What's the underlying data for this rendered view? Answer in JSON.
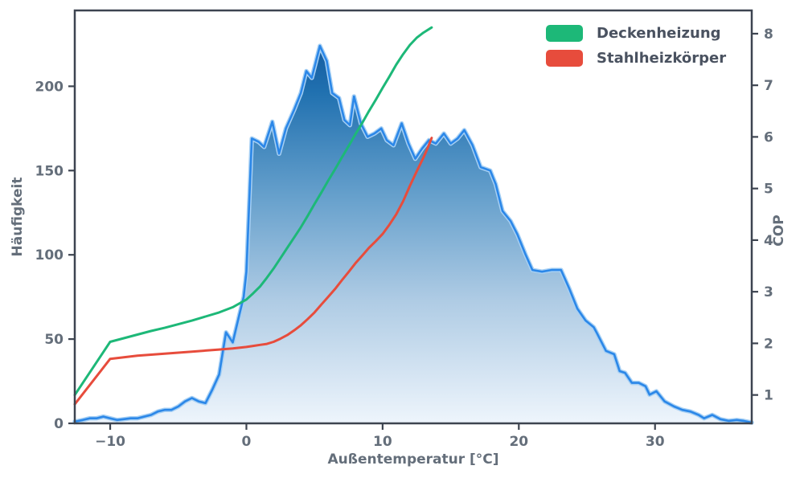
{
  "chart_data": {
    "type": "area",
    "title": "",
    "xlabel": "Außentemperatur [°C]",
    "ylabel_left": "Häufigkeit",
    "ylabel_right": "COP",
    "xlim": [
      -12.6,
      37.1
    ],
    "ylim_left": [
      0,
      245
    ],
    "ylim_right": [
      0.45,
      8.45
    ],
    "x_ticks": [
      -10,
      0,
      10,
      20,
      30
    ],
    "y_ticks_left": [
      0,
      50,
      100,
      150,
      200
    ],
    "y_ticks_right": [
      1,
      2,
      3,
      4,
      5,
      6,
      7,
      8
    ],
    "grid": false,
    "legend_position": "upper-right",
    "frame_color": "#3d4450",
    "text_color": "#646e7a",
    "histogram": {
      "name": "Häufigkeit",
      "axis": "left",
      "line_color": "#2b87e8",
      "halo_color": "#a7d0f4",
      "gradient": [
        "#0b4b94",
        "#2171b0",
        "#66a0cc",
        "#aecbe4",
        "#eef5fc"
      ],
      "points": [
        [
          -12.6,
          1
        ],
        [
          -12,
          2
        ],
        [
          -11.5,
          3
        ],
        [
          -11,
          3
        ],
        [
          -10.5,
          4
        ],
        [
          -10,
          3
        ],
        [
          -9.5,
          2
        ],
        [
          -9,
          2.5
        ],
        [
          -8.5,
          3
        ],
        [
          -8,
          3
        ],
        [
          -7.5,
          4
        ],
        [
          -7,
          5
        ],
        [
          -6.5,
          7
        ],
        [
          -6,
          8
        ],
        [
          -5.5,
          8
        ],
        [
          -5,
          10
        ],
        [
          -4.5,
          13
        ],
        [
          -4,
          15
        ],
        [
          -3.5,
          13
        ],
        [
          -3,
          12
        ],
        [
          -2.5,
          20
        ],
        [
          -2,
          29
        ],
        [
          -1.5,
          54
        ],
        [
          -1,
          48
        ],
        [
          -0.5,
          65
        ],
        [
          -0.2,
          75
        ],
        [
          0,
          90
        ],
        [
          0.2,
          130
        ],
        [
          0.4,
          169
        ],
        [
          0.9,
          167
        ],
        [
          1.3,
          164
        ],
        [
          1.9,
          179
        ],
        [
          2.4,
          160
        ],
        [
          2.9,
          175
        ],
        [
          3.5,
          186
        ],
        [
          4,
          196
        ],
        [
          4.4,
          209
        ],
        [
          4.8,
          205
        ],
        [
          5.4,
          224
        ],
        [
          5.9,
          215
        ],
        [
          6.3,
          196
        ],
        [
          6.8,
          193
        ],
        [
          7.2,
          180
        ],
        [
          7.6,
          177
        ],
        [
          7.9,
          194
        ],
        [
          8.4,
          178
        ],
        [
          8.9,
          170
        ],
        [
          9.4,
          172
        ],
        [
          9.9,
          175
        ],
        [
          10.3,
          168
        ],
        [
          10.8,
          165
        ],
        [
          11.4,
          178
        ],
        [
          11.9,
          166
        ],
        [
          12.4,
          157
        ],
        [
          12.9,
          163
        ],
        [
          13.4,
          168
        ],
        [
          13.9,
          166
        ],
        [
          14.5,
          172
        ],
        [
          15,
          166
        ],
        [
          15.5,
          169
        ],
        [
          16,
          174
        ],
        [
          16.6,
          165
        ],
        [
          17.2,
          152
        ],
        [
          17.9,
          150
        ],
        [
          18.3,
          142
        ],
        [
          18.8,
          126
        ],
        [
          19.4,
          120
        ],
        [
          19.9,
          112
        ],
        [
          20.5,
          100
        ],
        [
          21,
          91
        ],
        [
          21.7,
          90
        ],
        [
          22.4,
          91
        ],
        [
          23.1,
          91
        ],
        [
          23.7,
          80
        ],
        [
          24.3,
          68
        ],
        [
          24.9,
          61
        ],
        [
          25.5,
          57
        ],
        [
          25.7,
          54
        ],
        [
          26.4,
          43
        ],
        [
          27,
          41
        ],
        [
          27.4,
          31
        ],
        [
          27.8,
          30
        ],
        [
          28.3,
          24
        ],
        [
          28.8,
          24
        ],
        [
          29.3,
          22
        ],
        [
          29.6,
          17
        ],
        [
          30.1,
          19
        ],
        [
          30.7,
          13
        ],
        [
          31.4,
          10
        ],
        [
          32,
          8
        ],
        [
          32.6,
          7
        ],
        [
          33.2,
          5
        ],
        [
          33.6,
          3
        ],
        [
          34.2,
          5
        ],
        [
          34.8,
          2.5
        ],
        [
          35.4,
          1.5
        ],
        [
          36,
          2
        ],
        [
          36.5,
          1.5
        ],
        [
          37.1,
          0.5
        ]
      ]
    },
    "series": [
      {
        "name": "Deckenheizung",
        "axis": "right",
        "color": "#1db878",
        "points": [
          [
            -12.6,
            1.0
          ],
          [
            -10,
            2.03
          ],
          [
            -9,
            2.1
          ],
          [
            -8,
            2.17
          ],
          [
            -7,
            2.24
          ],
          [
            -6,
            2.3
          ],
          [
            -5,
            2.37
          ],
          [
            -4,
            2.44
          ],
          [
            -3,
            2.52
          ],
          [
            -2,
            2.6
          ],
          [
            -1,
            2.7
          ],
          [
            0,
            2.85
          ],
          [
            0.5,
            2.97
          ],
          [
            1,
            3.1
          ],
          [
            1.5,
            3.27
          ],
          [
            2,
            3.45
          ],
          [
            2.5,
            3.65
          ],
          [
            3,
            3.85
          ],
          [
            3.5,
            4.05
          ],
          [
            4,
            4.25
          ],
          [
            4.5,
            4.47
          ],
          [
            5,
            4.7
          ],
          [
            5.5,
            4.92
          ],
          [
            6,
            5.15
          ],
          [
            6.5,
            5.37
          ],
          [
            7,
            5.6
          ],
          [
            7.5,
            5.82
          ],
          [
            8,
            6.05
          ],
          [
            8.5,
            6.27
          ],
          [
            9,
            6.5
          ],
          [
            9.5,
            6.72
          ],
          [
            10,
            6.95
          ],
          [
            10.5,
            7.17
          ],
          [
            11,
            7.4
          ],
          [
            11.5,
            7.6
          ],
          [
            12,
            7.78
          ],
          [
            12.5,
            7.92
          ],
          [
            13,
            8.02
          ],
          [
            13.6,
            8.12
          ]
        ]
      },
      {
        "name": "Stahlheizkörper",
        "axis": "right",
        "color": "#e74c3c",
        "points": [
          [
            -12.6,
            0.82
          ],
          [
            -10,
            1.7
          ],
          [
            -9,
            1.73
          ],
          [
            -8,
            1.76
          ],
          [
            -7,
            1.78
          ],
          [
            -6,
            1.8
          ],
          [
            -5,
            1.82
          ],
          [
            -4,
            1.84
          ],
          [
            -3,
            1.86
          ],
          [
            -2,
            1.88
          ],
          [
            -1,
            1.9
          ],
          [
            0,
            1.93
          ],
          [
            0.5,
            1.95
          ],
          [
            1,
            1.97
          ],
          [
            1.5,
            1.99
          ],
          [
            2,
            2.03
          ],
          [
            2.5,
            2.09
          ],
          [
            3,
            2.16
          ],
          [
            3.5,
            2.25
          ],
          [
            4,
            2.35
          ],
          [
            4.5,
            2.47
          ],
          [
            5,
            2.6
          ],
          [
            5.5,
            2.75
          ],
          [
            6,
            2.9
          ],
          [
            6.5,
            3.05
          ],
          [
            7,
            3.22
          ],
          [
            7.5,
            3.38
          ],
          [
            8,
            3.55
          ],
          [
            8.5,
            3.7
          ],
          [
            9,
            3.85
          ],
          [
            9.5,
            3.98
          ],
          [
            10,
            4.12
          ],
          [
            10.5,
            4.3
          ],
          [
            11,
            4.5
          ],
          [
            11.5,
            4.75
          ],
          [
            12,
            5.05
          ],
          [
            12.5,
            5.33
          ],
          [
            13,
            5.6
          ],
          [
            13.3,
            5.78
          ],
          [
            13.6,
            5.98
          ]
        ]
      }
    ]
  }
}
